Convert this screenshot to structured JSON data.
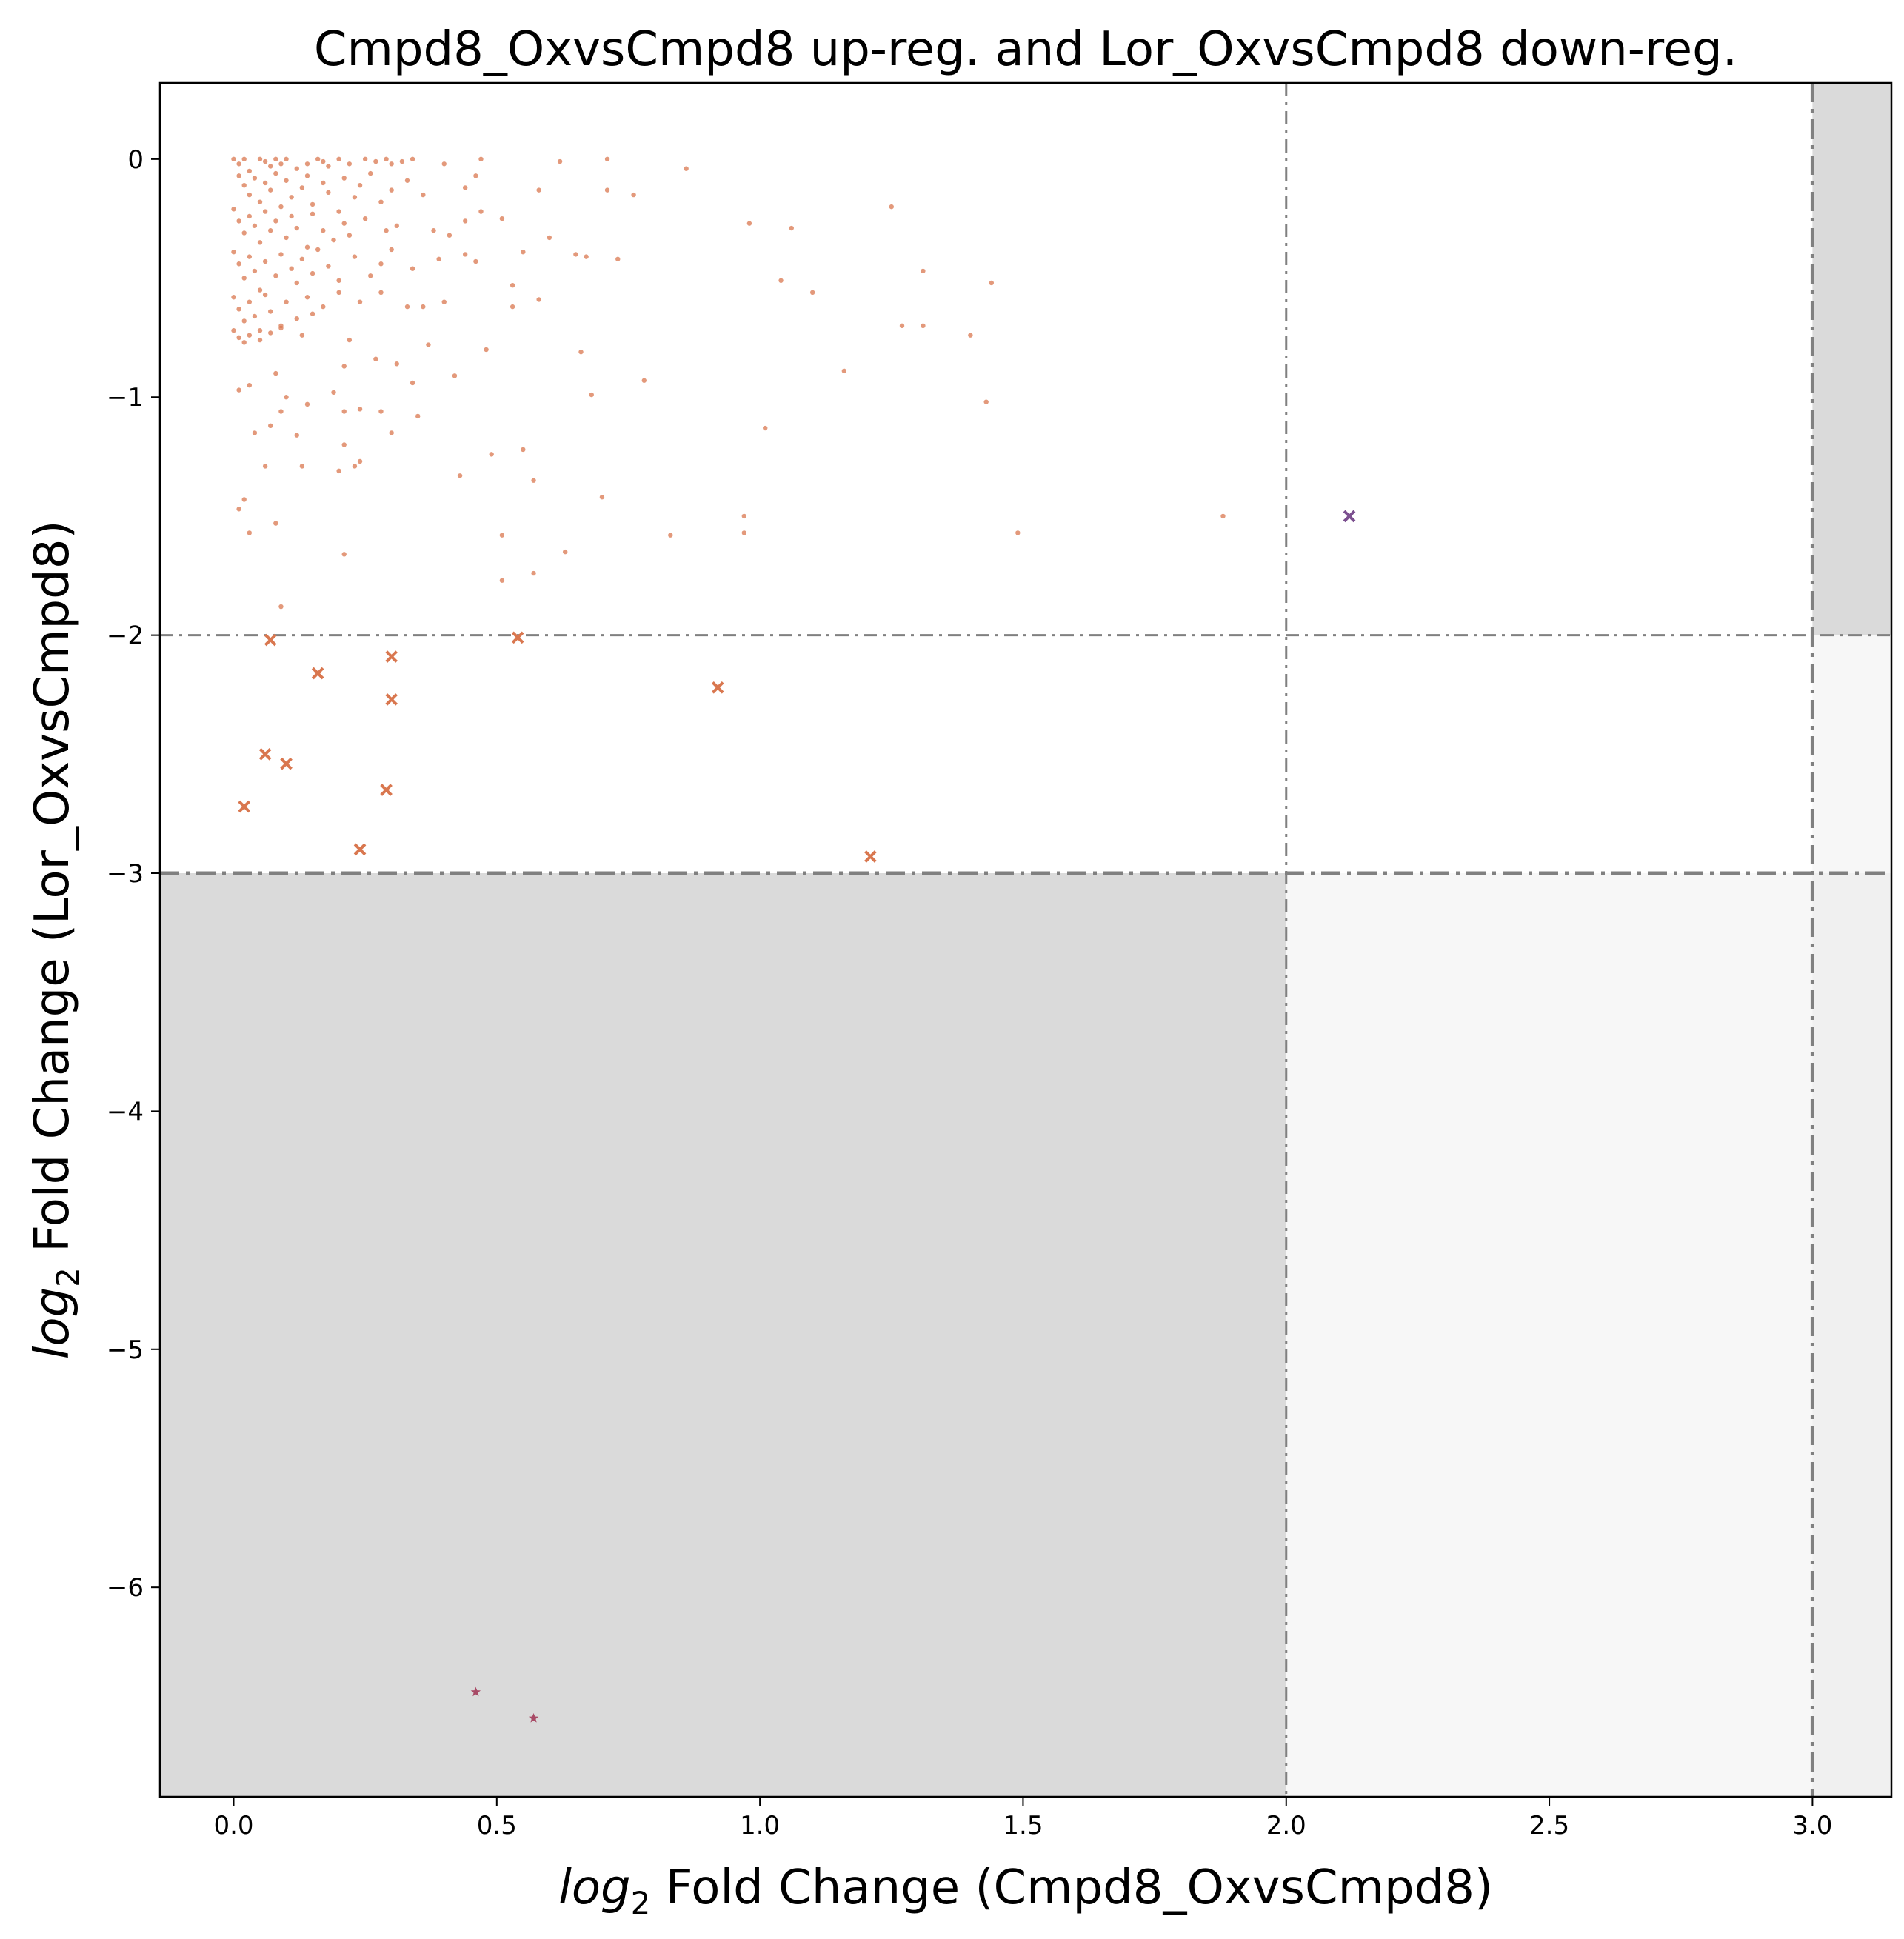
{
  "chart_data": {
    "type": "scatter",
    "title": "Cmpd8_OxvsCmpd8 up-reg. and Lor_OxvsCmpd8 down-reg.",
    "xlabel": "log2 Fold Change (Cmpd8_OxvsCmpd8)",
    "ylabel": "log2 Fold Change (Lor_OxvsCmpd8)",
    "xlim": [
      -0.14,
      3.15
    ],
    "ylim": [
      -6.88,
      0.32
    ],
    "x_ticks": [
      0.0,
      0.5,
      1.0,
      1.5,
      2.0,
      2.5,
      3.0
    ],
    "x_tick_labels": [
      "0.0",
      "0.5",
      "1.0",
      "1.5",
      "2.0",
      "2.5",
      "3.0"
    ],
    "y_ticks": [
      0,
      -1,
      -2,
      -3,
      -4,
      -5,
      -6
    ],
    "y_tick_labels": [
      "0",
      "−1",
      "−2",
      "−3",
      "−4",
      "−5",
      "−6"
    ],
    "grid": false,
    "legend": "none",
    "colors": {
      "dots": "#d9774f",
      "x_markers": "#d9774f",
      "purple_marker": "#7b4f8f",
      "star_markers": "#a84a66",
      "threshold_lines": "#808080",
      "dark_region": "#dadada",
      "light_region": "#f7f7f7",
      "mid_region": "#f0f0f0"
    },
    "thresholds": {
      "x": [
        2.0,
        3.0
      ],
      "y": [
        -2.0,
        -3.0
      ]
    },
    "shaded_regions": [
      {
        "x": [
          -0.14,
          2.0
        ],
        "y": [
          -6.88,
          -3.0
        ],
        "shade": "dark"
      },
      {
        "x": [
          3.0,
          3.15
        ],
        "y": [
          -2.0,
          0.32
        ],
        "shade": "dark"
      },
      {
        "x": [
          2.0,
          3.0
        ],
        "y": [
          -6.88,
          -3.0
        ],
        "shade": "light"
      },
      {
        "x": [
          3.0,
          3.15
        ],
        "y": [
          -3.0,
          -2.0
        ],
        "shade": "light"
      },
      {
        "x": [
          3.0,
          3.15
        ],
        "y": [
          -6.88,
          -3.0
        ],
        "shade": "mid"
      }
    ],
    "series": [
      {
        "marker": "dot",
        "points": [
          [
            0.0,
            0.0
          ],
          [
            0.01,
            -0.02
          ],
          [
            0.02,
            0.0
          ],
          [
            0.03,
            -0.05
          ],
          [
            0.05,
            0.0
          ],
          [
            0.06,
            -0.01
          ],
          [
            0.07,
            -0.03
          ],
          [
            0.08,
            0.0
          ],
          [
            0.09,
            -0.02
          ],
          [
            0.1,
            0.0
          ],
          [
            0.12,
            -0.04
          ],
          [
            0.14,
            -0.02
          ],
          [
            0.16,
            0.0
          ],
          [
            0.17,
            -0.01
          ],
          [
            0.18,
            -0.03
          ],
          [
            0.2,
            0.0
          ],
          [
            0.22,
            -0.02
          ],
          [
            0.25,
            0.0
          ],
          [
            0.27,
            -0.01
          ],
          [
            0.29,
            0.0
          ],
          [
            0.3,
            -0.02
          ],
          [
            0.32,
            -0.01
          ],
          [
            0.34,
            0.0
          ],
          [
            0.4,
            -0.02
          ],
          [
            0.47,
            0.0
          ],
          [
            0.62,
            -0.01
          ],
          [
            0.71,
            0.0
          ],
          [
            0.86,
            -0.04
          ],
          [
            0.01,
            -0.07
          ],
          [
            0.02,
            -0.11
          ],
          [
            0.03,
            -0.15
          ],
          [
            0.04,
            -0.08
          ],
          [
            0.05,
            -0.18
          ],
          [
            0.06,
            -0.1
          ],
          [
            0.07,
            -0.13
          ],
          [
            0.08,
            -0.06
          ],
          [
            0.09,
            -0.2
          ],
          [
            0.1,
            -0.09
          ],
          [
            0.11,
            -0.16
          ],
          [
            0.13,
            -0.12
          ],
          [
            0.14,
            -0.07
          ],
          [
            0.15,
            -0.19
          ],
          [
            0.17,
            -0.1
          ],
          [
            0.18,
            -0.14
          ],
          [
            0.2,
            -0.22
          ],
          [
            0.21,
            -0.08
          ],
          [
            0.23,
            -0.16
          ],
          [
            0.24,
            -0.11
          ],
          [
            0.26,
            -0.06
          ],
          [
            0.28,
            -0.18
          ],
          [
            0.3,
            -0.13
          ],
          [
            0.33,
            -0.09
          ],
          [
            0.36,
            -0.15
          ],
          [
            0.44,
            -0.12
          ],
          [
            0.46,
            -0.07
          ],
          [
            0.58,
            -0.13
          ],
          [
            0.71,
            -0.13
          ],
          [
            0.76,
            -0.15
          ],
          [
            0.0,
            -0.21
          ],
          [
            0.01,
            -0.26
          ],
          [
            0.02,
            -0.31
          ],
          [
            0.03,
            -0.24
          ],
          [
            0.04,
            -0.28
          ],
          [
            0.05,
            -0.35
          ],
          [
            0.06,
            -0.22
          ],
          [
            0.07,
            -0.3
          ],
          [
            0.08,
            -0.26
          ],
          [
            0.1,
            -0.33
          ],
          [
            0.11,
            -0.24
          ],
          [
            0.12,
            -0.29
          ],
          [
            0.14,
            -0.37
          ],
          [
            0.15,
            -0.23
          ],
          [
            0.17,
            -0.3
          ],
          [
            0.19,
            -0.34
          ],
          [
            0.21,
            -0.27
          ],
          [
            0.22,
            -0.32
          ],
          [
            0.25,
            -0.25
          ],
          [
            0.29,
            -0.3
          ],
          [
            0.31,
            -0.28
          ],
          [
            0.38,
            -0.3
          ],
          [
            0.41,
            -0.32
          ],
          [
            0.44,
            -0.26
          ],
          [
            0.47,
            -0.22
          ],
          [
            0.51,
            -0.25
          ],
          [
            0.6,
            -0.33
          ],
          [
            0.98,
            -0.27
          ],
          [
            1.06,
            -0.29
          ],
          [
            1.25,
            -0.2
          ],
          [
            0.0,
            -0.39
          ],
          [
            0.01,
            -0.44
          ],
          [
            0.02,
            -0.5
          ],
          [
            0.03,
            -0.41
          ],
          [
            0.04,
            -0.47
          ],
          [
            0.05,
            -0.55
          ],
          [
            0.06,
            -0.43
          ],
          [
            0.08,
            -0.49
          ],
          [
            0.09,
            -0.4
          ],
          [
            0.11,
            -0.46
          ],
          [
            0.12,
            -0.52
          ],
          [
            0.13,
            -0.42
          ],
          [
            0.15,
            -0.48
          ],
          [
            0.16,
            -0.38
          ],
          [
            0.18,
            -0.45
          ],
          [
            0.2,
            -0.51
          ],
          [
            0.23,
            -0.41
          ],
          [
            0.26,
            -0.49
          ],
          [
            0.28,
            -0.44
          ],
          [
            0.3,
            -0.38
          ],
          [
            0.34,
            -0.46
          ],
          [
            0.39,
            -0.42
          ],
          [
            0.44,
            -0.4
          ],
          [
            0.46,
            -0.43
          ],
          [
            0.55,
            -0.39
          ],
          [
            0.65,
            -0.4
          ],
          [
            0.67,
            -0.41
          ],
          [
            0.73,
            -0.42
          ],
          [
            1.31,
            -0.47
          ],
          [
            0.0,
            -0.58
          ],
          [
            0.01,
            -0.63
          ],
          [
            0.02,
            -0.68
          ],
          [
            0.03,
            -0.6
          ],
          [
            0.04,
            -0.66
          ],
          [
            0.05,
            -0.72
          ],
          [
            0.06,
            -0.57
          ],
          [
            0.07,
            -0.64
          ],
          [
            0.09,
            -0.7
          ],
          [
            0.1,
            -0.6
          ],
          [
            0.12,
            -0.67
          ],
          [
            0.14,
            -0.58
          ],
          [
            0.15,
            -0.65
          ],
          [
            0.17,
            -0.62
          ],
          [
            0.2,
            -0.56
          ],
          [
            0.24,
            -0.6
          ],
          [
            0.28,
            -0.56
          ],
          [
            0.33,
            -0.62
          ],
          [
            0.36,
            -0.62
          ],
          [
            0.4,
            -0.6
          ],
          [
            0.53,
            -0.53
          ],
          [
            0.53,
            -0.62
          ],
          [
            0.58,
            -0.59
          ],
          [
            1.04,
            -0.51
          ],
          [
            1.1,
            -0.56
          ],
          [
            1.44,
            -0.52
          ],
          [
            0.0,
            -0.72
          ],
          [
            0.01,
            -0.75
          ],
          [
            0.02,
            -0.77
          ],
          [
            0.03,
            -0.74
          ],
          [
            0.05,
            -0.76
          ],
          [
            0.07,
            -0.73
          ],
          [
            0.09,
            -0.71
          ],
          [
            0.13,
            -0.74
          ],
          [
            0.22,
            -0.76
          ],
          [
            0.37,
            -0.78
          ],
          [
            0.27,
            -0.84
          ],
          [
            0.31,
            -0.86
          ],
          [
            0.48,
            -0.8
          ],
          [
            0.66,
            -0.81
          ],
          [
            1.27,
            -0.7
          ],
          [
            1.31,
            -0.7
          ],
          [
            1.4,
            -0.74
          ],
          [
            1.16,
            -0.89
          ],
          [
            0.21,
            -0.87
          ],
          [
            0.42,
            -0.91
          ],
          [
            0.34,
            -0.94
          ],
          [
            0.78,
            -0.93
          ],
          [
            0.01,
            -0.97
          ],
          [
            0.03,
            -0.95
          ],
          [
            0.08,
            -0.9
          ],
          [
            0.09,
            -1.06
          ],
          [
            0.1,
            -1.0
          ],
          [
            0.14,
            -1.03
          ],
          [
            0.19,
            -0.98
          ],
          [
            0.24,
            -1.05
          ],
          [
            0.21,
            -1.06
          ],
          [
            0.28,
            -1.06
          ],
          [
            0.35,
            -1.08
          ],
          [
            0.68,
            -0.99
          ],
          [
            1.43,
            -1.02
          ],
          [
            0.04,
            -1.15
          ],
          [
            0.07,
            -1.12
          ],
          [
            0.12,
            -1.16
          ],
          [
            0.3,
            -1.15
          ],
          [
            0.21,
            -1.2
          ],
          [
            0.49,
            -1.24
          ],
          [
            0.55,
            -1.22
          ],
          [
            1.01,
            -1.13
          ],
          [
            0.06,
            -1.29
          ],
          [
            0.13,
            -1.29
          ],
          [
            0.2,
            -1.31
          ],
          [
            0.23,
            -1.29
          ],
          [
            0.43,
            -1.33
          ],
          [
            0.24,
            -1.27
          ],
          [
            0.57,
            -1.35
          ],
          [
            0.01,
            -1.47
          ],
          [
            0.02,
            -1.43
          ],
          [
            0.7,
            -1.42
          ],
          [
            0.97,
            -1.5
          ],
          [
            0.03,
            -1.57
          ],
          [
            0.08,
            -1.53
          ],
          [
            0.51,
            -1.58
          ],
          [
            0.83,
            -1.58
          ],
          [
            0.97,
            -1.57
          ],
          [
            1.49,
            -1.57
          ],
          [
            1.88,
            -1.5
          ],
          [
            0.21,
            -1.66
          ],
          [
            0.63,
            -1.65
          ],
          [
            0.51,
            -1.77
          ],
          [
            0.57,
            -1.74
          ],
          [
            0.09,
            -1.88
          ]
        ]
      },
      {
        "marker": "x",
        "points": [
          [
            0.07,
            -2.02
          ],
          [
            0.16,
            -2.16
          ],
          [
            0.3,
            -2.09
          ],
          [
            0.54,
            -2.01
          ],
          [
            0.92,
            -2.22
          ],
          [
            0.3,
            -2.27
          ],
          [
            0.06,
            -2.5
          ],
          [
            0.1,
            -2.54
          ],
          [
            0.29,
            -2.65
          ],
          [
            0.02,
            -2.72
          ],
          [
            0.24,
            -2.9
          ],
          [
            1.21,
            -2.93
          ]
        ]
      },
      {
        "marker": "x-purple",
        "points": [
          [
            2.12,
            -1.5
          ]
        ]
      },
      {
        "marker": "star",
        "points": [
          [
            0.46,
            -6.44
          ],
          [
            0.57,
            -6.55
          ]
        ]
      }
    ]
  }
}
